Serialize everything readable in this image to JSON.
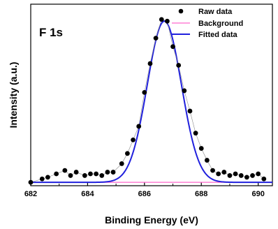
{
  "chart_data": {
    "type": "scatter",
    "annotation": "F 1s",
    "xlabel": "Binding Energy (eV)",
    "ylabel": "Intensity (a.u.)",
    "xlim": [
      682,
      690.5
    ],
    "ylim": [
      0,
      1.07
    ],
    "x_ticks": [
      682,
      684,
      686,
      688,
      690
    ],
    "y_ticks_shown": false,
    "grid": false,
    "legend_position": "top-right",
    "colors": {
      "raw": "#000000",
      "background": "#ff66cc",
      "fitted": "#2020dd"
    },
    "series": [
      {
        "name": "Raw data",
        "kind": "points",
        "x": [
          682.0,
          682.4,
          682.6,
          682.9,
          683.2,
          683.4,
          683.6,
          683.9,
          684.1,
          684.3,
          684.5,
          684.7,
          684.9,
          685.2,
          685.4,
          685.6,
          685.8,
          686.0,
          686.2,
          686.4,
          686.6,
          686.8,
          687.0,
          687.2,
          687.4,
          687.6,
          687.8,
          688.0,
          688.2,
          688.4,
          688.6,
          688.8,
          689.0,
          689.2,
          689.4,
          689.6,
          689.8,
          690.0,
          690.2
        ],
        "y": [
          0.02,
          0.04,
          0.05,
          0.07,
          0.09,
          0.06,
          0.08,
          0.06,
          0.07,
          0.07,
          0.06,
          0.08,
          0.08,
          0.13,
          0.19,
          0.27,
          0.35,
          0.55,
          0.72,
          0.87,
          0.98,
          0.97,
          0.82,
          0.71,
          0.56,
          0.44,
          0.31,
          0.22,
          0.15,
          0.09,
          0.07,
          0.08,
          0.06,
          0.07,
          0.06,
          0.05,
          0.06,
          0.07,
          0.04
        ]
      },
      {
        "name": "Background",
        "kind": "line",
        "x": [
          682.0,
          690.5
        ],
        "y": [
          0.02,
          0.02
        ]
      },
      {
        "name": "Fitted data",
        "kind": "line",
        "model": "gaussian",
        "center": 686.7,
        "amplitude": 0.95,
        "sigma": 0.6,
        "offset": 0.02
      }
    ]
  }
}
